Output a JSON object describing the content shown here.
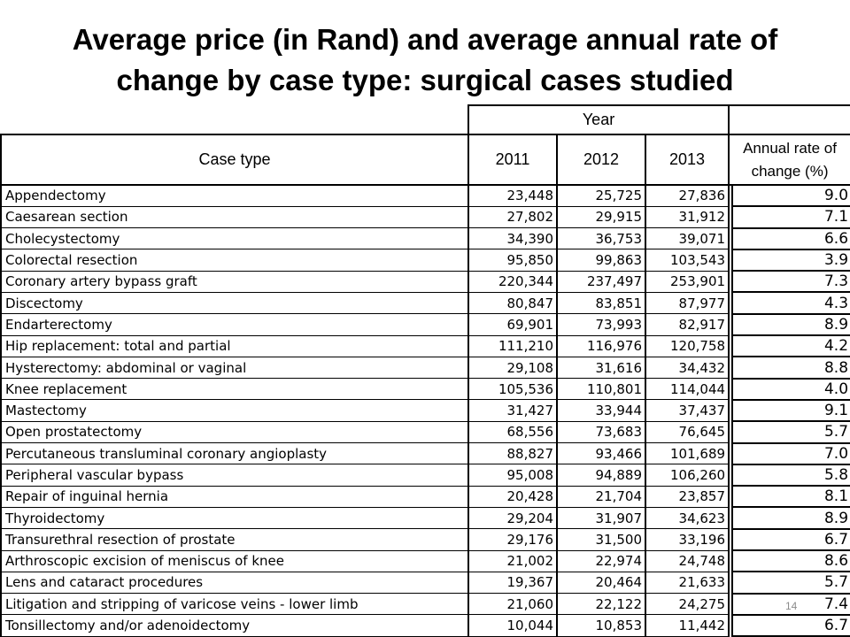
{
  "slide": {
    "title_line1": "Average price (in Rand) and average annual rate of",
    "title_line2": "change by case type: surgical cases studied",
    "page_number": "14"
  },
  "table": {
    "year_header": "Year",
    "case_type_header": "Case type",
    "year_2011": "2011",
    "year_2012": "2012",
    "year_2013": "2013",
    "rate_header_line1": "Annual rate of",
    "rate_header_line2": "change (%)",
    "rows": [
      {
        "name": "Appendectomy",
        "y2011": "23,448",
        "y2012": "25,725",
        "y2013": "27,836",
        "rate": "9.0"
      },
      {
        "name": "Caesarean section",
        "y2011": "27,802",
        "y2012": "29,915",
        "y2013": "31,912",
        "rate": "7.1"
      },
      {
        "name": "Cholecystectomy",
        "y2011": "34,390",
        "y2012": "36,753",
        "y2013": "39,071",
        "rate": "6.6"
      },
      {
        "name": "Colorectal resection",
        "y2011": "95,850",
        "y2012": "99,863",
        "y2013": "103,543",
        "rate": "3.9"
      },
      {
        "name": "Coronary artery bypass graft",
        "y2011": "220,344",
        "y2012": "237,497",
        "y2013": "253,901",
        "rate": "7.3"
      },
      {
        "name": "Discectomy",
        "y2011": "80,847",
        "y2012": "83,851",
        "y2013": "87,977",
        "rate": "4.3"
      },
      {
        "name": "Endarterectomy",
        "y2011": "69,901",
        "y2012": "73,993",
        "y2013": "82,917",
        "rate": "8.9"
      },
      {
        "name": "Hip replacement: total and partial",
        "y2011": "111,210",
        "y2012": "116,976",
        "y2013": "120,758",
        "rate": "4.2"
      },
      {
        "name": "Hysterectomy: abdominal or vaginal",
        "y2011": "29,108",
        "y2012": "31,616",
        "y2013": "34,432",
        "rate": "8.8"
      },
      {
        "name": "Knee replacement",
        "y2011": "105,536",
        "y2012": "110,801",
        "y2013": "114,044",
        "rate": "4.0"
      },
      {
        "name": "Mastectomy",
        "y2011": "31,427",
        "y2012": "33,944",
        "y2013": "37,437",
        "rate": "9.1"
      },
      {
        "name": "Open prostatectomy",
        "y2011": "68,556",
        "y2012": "73,683",
        "y2013": "76,645",
        "rate": "5.7"
      },
      {
        "name": "Percutaneous transluminal coronary angioplasty",
        "y2011": "88,827",
        "y2012": "93,466",
        "y2013": "101,689",
        "rate": "7.0"
      },
      {
        "name": "Peripheral vascular bypass",
        "y2011": "95,008",
        "y2012": "94,889",
        "y2013": "106,260",
        "rate": "5.8"
      },
      {
        "name": "Repair of inguinal hernia",
        "y2011": "20,428",
        "y2012": "21,704",
        "y2013": "23,857",
        "rate": "8.1"
      },
      {
        "name": "Thyroidectomy",
        "y2011": "29,204",
        "y2012": "31,907",
        "y2013": "34,623",
        "rate": "8.9"
      },
      {
        "name": "Transurethral resection of prostate",
        "y2011": "29,176",
        "y2012": "31,500",
        "y2013": "33,196",
        "rate": "6.7"
      },
      {
        "name": "Arthroscopic excision of meniscus of knee",
        "y2011": "21,002",
        "y2012": "22,974",
        "y2013": "24,748",
        "rate": "8.6"
      },
      {
        "name": "Lens and cataract procedures",
        "y2011": "19,367",
        "y2012": "20,464",
        "y2013": "21,633",
        "rate": "5.7"
      },
      {
        "name": "Litigation and stripping of varicose veins - lower limb",
        "y2011": "21,060",
        "y2012": "22,122",
        "y2013": "24,275",
        "rate": "7.4"
      },
      {
        "name": "Tonsillectomy and/or adenoidectomy",
        "y2011": "10,044",
        "y2012": "10,853",
        "y2013": "11,442",
        "rate": "6.7"
      }
    ]
  }
}
